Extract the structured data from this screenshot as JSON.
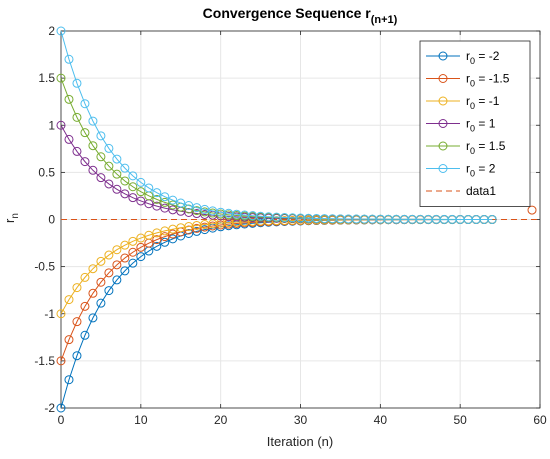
{
  "chart_data": {
    "type": "line",
    "title": "Convergence Sequence r",
    "title_subscript": "(n+1)",
    "xlabel": "Iteration (n)",
    "ylabel": "r",
    "ylabel_subscript": "n",
    "xlim": [
      0,
      60
    ],
    "ylim": [
      -2,
      2
    ],
    "xticks": [
      0,
      10,
      20,
      30,
      40,
      50,
      60
    ],
    "yticks": [
      -2,
      -1.5,
      -1,
      -0.5,
      0,
      0.5,
      1,
      1.5,
      2
    ],
    "xtick_labels": [
      "0",
      "10",
      "20",
      "30",
      "40",
      "50",
      "60"
    ],
    "ytick_labels": [
      "-2",
      "-1.5",
      "-1",
      "-0.5",
      "0",
      "0.5",
      "1",
      "1.5",
      "2"
    ],
    "grid": true,
    "legend_position": "top-right",
    "decay_ratio": 0.85,
    "series": [
      {
        "name": "r",
        "name_sub": "0",
        "name_suffix": " = -2",
        "r0": -2,
        "iterations": 54,
        "color": "#0072BD"
      },
      {
        "name": "r",
        "name_sub": "0",
        "name_suffix": " = -1.5",
        "r0": -1.5,
        "iterations": 54,
        "color": "#D95319"
      },
      {
        "name": "r",
        "name_sub": "0",
        "name_suffix": " = -1",
        "r0": -1,
        "iterations": 54,
        "color": "#EDB120"
      },
      {
        "name": "r",
        "name_sub": "0",
        "name_suffix": " = 1",
        "r0": 1,
        "iterations": 54,
        "color": "#7E2F8E"
      },
      {
        "name": "r",
        "name_sub": "0",
        "name_suffix": " = 1.5",
        "r0": 1.5,
        "iterations": 54,
        "color": "#77AC30"
      },
      {
        "name": "r",
        "name_sub": "0",
        "name_suffix": " = 2",
        "r0": 2,
        "iterations": 54,
        "color": "#4DBEEE"
      }
    ],
    "reference_line": {
      "name": "data1",
      "y": 0,
      "color": "#D95319",
      "style": "dashed"
    },
    "extra_marker": {
      "x": 59,
      "y": 0.1,
      "color": "#D95319"
    }
  }
}
